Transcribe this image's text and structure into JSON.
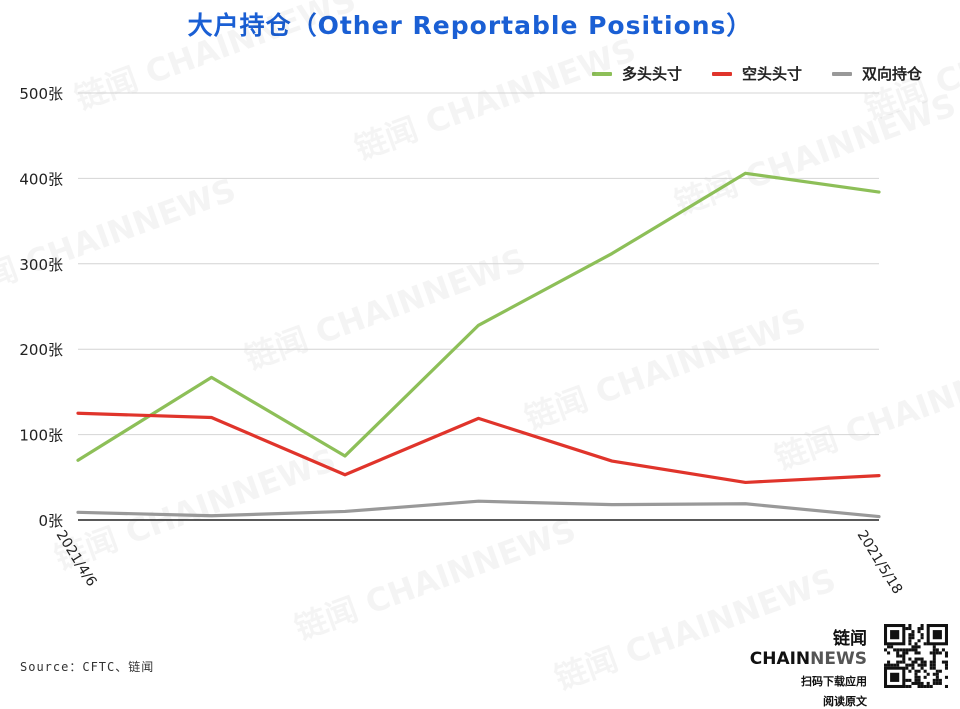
{
  "title": "大户持仓（Other Reportable Positions）",
  "source": "Source：CFTC、链闻",
  "brand": {
    "name_cn": "链闻",
    "name_en_1": "CHAIN",
    "name_en_2": "NEWS",
    "line1": "扫码下载应用",
    "line2": "阅读原文"
  },
  "watermark_text": "链闻 CHAINNEWS",
  "chart_data": {
    "type": "line",
    "x": [
      "2021/4/6",
      "",
      "",
      "",
      "",
      "",
      "2021/5/18"
    ],
    "x_tick_labels": [
      "2021/4/6",
      "2021/5/18"
    ],
    "ylim": [
      0,
      500
    ],
    "y_ticks": [
      0,
      100,
      200,
      300,
      400,
      500
    ],
    "y_tick_labels": [
      "0张",
      "100张",
      "200张",
      "300张",
      "400张",
      "500张"
    ],
    "grid": true,
    "legend_position": "top-right",
    "series": [
      {
        "name": "多头头寸",
        "color": "#8dbf58",
        "values": [
          70,
          167,
          75,
          228,
          312,
          406,
          384
        ]
      },
      {
        "name": "空头头寸",
        "color": "#e0342b",
        "values": [
          125,
          120,
          53,
          119,
          69,
          44,
          52
        ]
      },
      {
        "name": "双向持仓",
        "color": "#999999",
        "values": [
          9,
          5,
          10,
          22,
          18,
          19,
          4
        ]
      }
    ]
  }
}
